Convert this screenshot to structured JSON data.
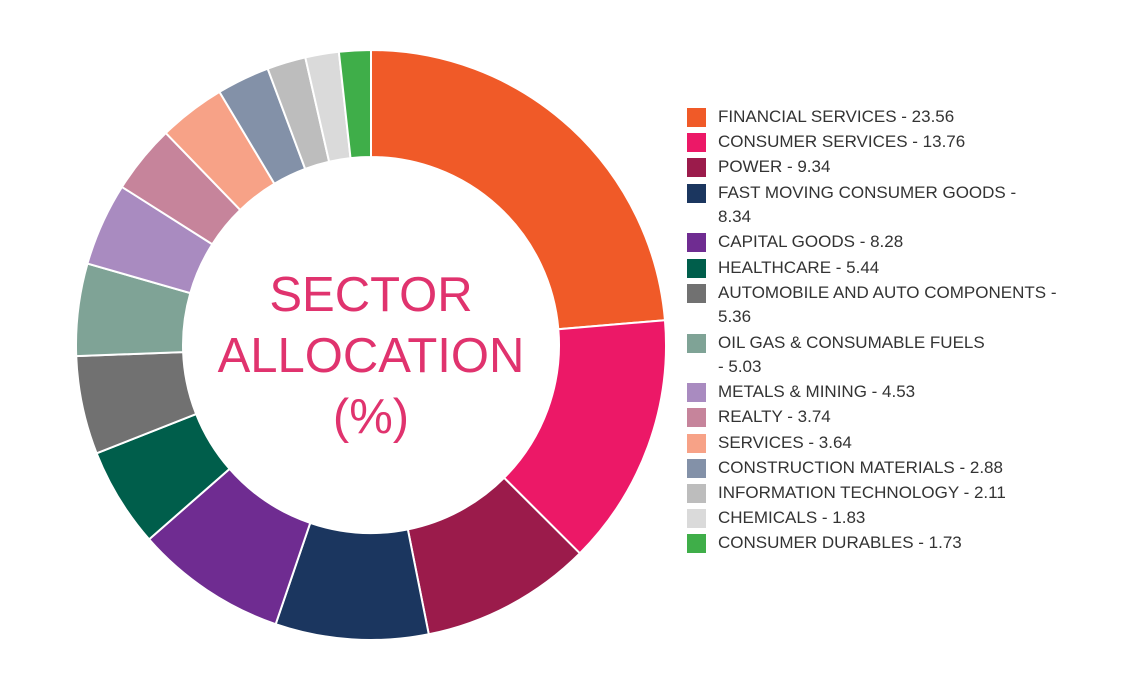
{
  "chart_data": {
    "type": "pie",
    "donut": true,
    "title_lines": [
      "SECTOR",
      "ALLOCATION",
      "(%)"
    ],
    "legend_placement": "right",
    "slices": [
      {
        "name": "FINANCIAL SERVICES",
        "value": 23.56,
        "color": "#F05A28",
        "label": "FINANCIAL SERVICES - 23.56"
      },
      {
        "name": "CONSUMER SERVICES",
        "value": 13.76,
        "color": "#EC1867",
        "label": "CONSUMER SERVICES - 13.76"
      },
      {
        "name": "POWER",
        "value": 9.34,
        "color": "#9B1B4B",
        "label": "POWER - 9.34"
      },
      {
        "name": "FAST MOVING CONSUMER GOODS",
        "value": 8.34,
        "color": "#1B365F",
        "label": "FAST MOVING CONSUMER GOODS -\n8.34"
      },
      {
        "name": "CAPITAL GOODS",
        "value": 8.28,
        "color": "#6F2C91",
        "label": "CAPITAL GOODS - 8.28"
      },
      {
        "name": "HEALTHCARE",
        "value": 5.44,
        "color": "#005E4B",
        "label": "HEALTHCARE - 5.44"
      },
      {
        "name": "AUTOMOBILE AND AUTO COMPONENTS",
        "value": 5.36,
        "color": "#717171",
        "label": "AUTOMOBILE AND AUTO COMPONENTS -\n5.36"
      },
      {
        "name": "OIL GAS & CONSUMABLE FUELS",
        "value": 5.03,
        "color": "#7FA396",
        "label": "OIL GAS & CONSUMABLE FUELS\n- 5.03"
      },
      {
        "name": "METALS & MINING",
        "value": 4.53,
        "color": "#A98BC0",
        "label": "METALS & MINING - 4.53"
      },
      {
        "name": "REALTY",
        "value": 3.74,
        "color": "#C6849B",
        "label": "REALTY - 3.74"
      },
      {
        "name": "SERVICES",
        "value": 3.64,
        "color": "#F7A287",
        "label": "SERVICES - 3.64"
      },
      {
        "name": "CONSTRUCTION MATERIALS",
        "value": 2.88,
        "color": "#8391A8",
        "label": "CONSTRUCTION MATERIALS - 2.88"
      },
      {
        "name": "INFORMATION TECHNOLOGY",
        "value": 2.11,
        "color": "#BDBDBD",
        "label": "INFORMATION TECHNOLOGY - 2.11"
      },
      {
        "name": "CHEMICALS",
        "value": 1.83,
        "color": "#DADADA",
        "label": "CHEMICALS - 1.83"
      },
      {
        "name": "CONSUMER DURABLES",
        "value": 1.73,
        "color": "#3FAE49",
        "label": "CONSUMER DURABLES - 1.73"
      }
    ]
  }
}
